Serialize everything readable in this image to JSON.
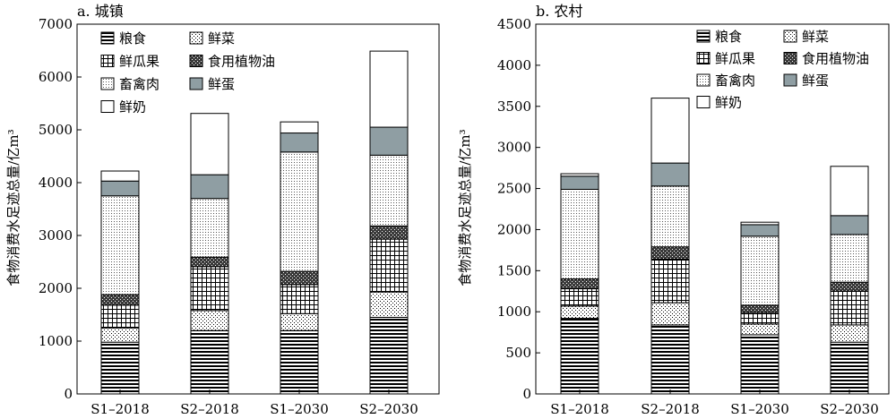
{
  "chart_data": [
    {
      "type": "bar",
      "stacked": true,
      "title": "a. 城镇",
      "xlabel": "",
      "ylabel": "食物消费水足迹总量/亿m³",
      "ylim": [
        0,
        7000
      ],
      "yticks": [
        0,
        1000,
        2000,
        3000,
        4000,
        5000,
        6000,
        7000
      ],
      "grid": false,
      "legend_position": "top-left",
      "categories": [
        "S1–2018",
        "S2–2018",
        "S1–2030",
        "S2–2030"
      ],
      "series": [
        {
          "name": "粮食",
          "pattern": "hlines",
          "values": [
            980,
            1200,
            1200,
            1450
          ]
        },
        {
          "name": "鲜菜",
          "pattern": "dots",
          "values": [
            270,
            380,
            320,
            480
          ]
        },
        {
          "name": "鲜瓜果",
          "pattern": "grid",
          "values": [
            430,
            830,
            550,
            1000
          ]
        },
        {
          "name": "食用植物油",
          "pattern": "crosshatch",
          "values": [
            200,
            180,
            250,
            250
          ]
        },
        {
          "name": "畜禽肉",
          "pattern": "finedots",
          "values": [
            1870,
            1110,
            2260,
            1340
          ]
        },
        {
          "name": "鲜蛋",
          "pattern": "gray",
          "values": [
            280,
            450,
            360,
            530
          ]
        },
        {
          "name": "鲜奶",
          "pattern": "white",
          "values": [
            190,
            1160,
            210,
            1440
          ]
        }
      ]
    },
    {
      "type": "bar",
      "stacked": true,
      "title": "b. 农村",
      "xlabel": "",
      "ylabel": "食物消费水足迹总量/亿m³",
      "ylim": [
        0,
        4500
      ],
      "yticks": [
        0,
        500,
        1000,
        1500,
        2000,
        2500,
        3000,
        3500,
        4000,
        4500
      ],
      "grid": false,
      "legend_position": "top-right",
      "categories": [
        "S1–2018",
        "S2–2018",
        "S1–2030",
        "S2–2030"
      ],
      "series": [
        {
          "name": "粮食",
          "pattern": "hlines",
          "values": [
            920,
            840,
            720,
            630
          ]
        },
        {
          "name": "鲜菜",
          "pattern": "dots",
          "values": [
            150,
            270,
            130,
            210
          ]
        },
        {
          "name": "鲜瓜果",
          "pattern": "grid",
          "values": [
            210,
            530,
            140,
            410
          ]
        },
        {
          "name": "食用植物油",
          "pattern": "crosshatch",
          "values": [
            120,
            150,
            90,
            110
          ]
        },
        {
          "name": "畜禽肉",
          "pattern": "finedots",
          "values": [
            1090,
            740,
            840,
            580
          ]
        },
        {
          "name": "鲜蛋",
          "pattern": "gray",
          "values": [
            160,
            280,
            140,
            230
          ]
        },
        {
          "name": "鲜奶",
          "pattern": "white",
          "values": [
            30,
            790,
            30,
            600
          ]
        }
      ]
    }
  ]
}
